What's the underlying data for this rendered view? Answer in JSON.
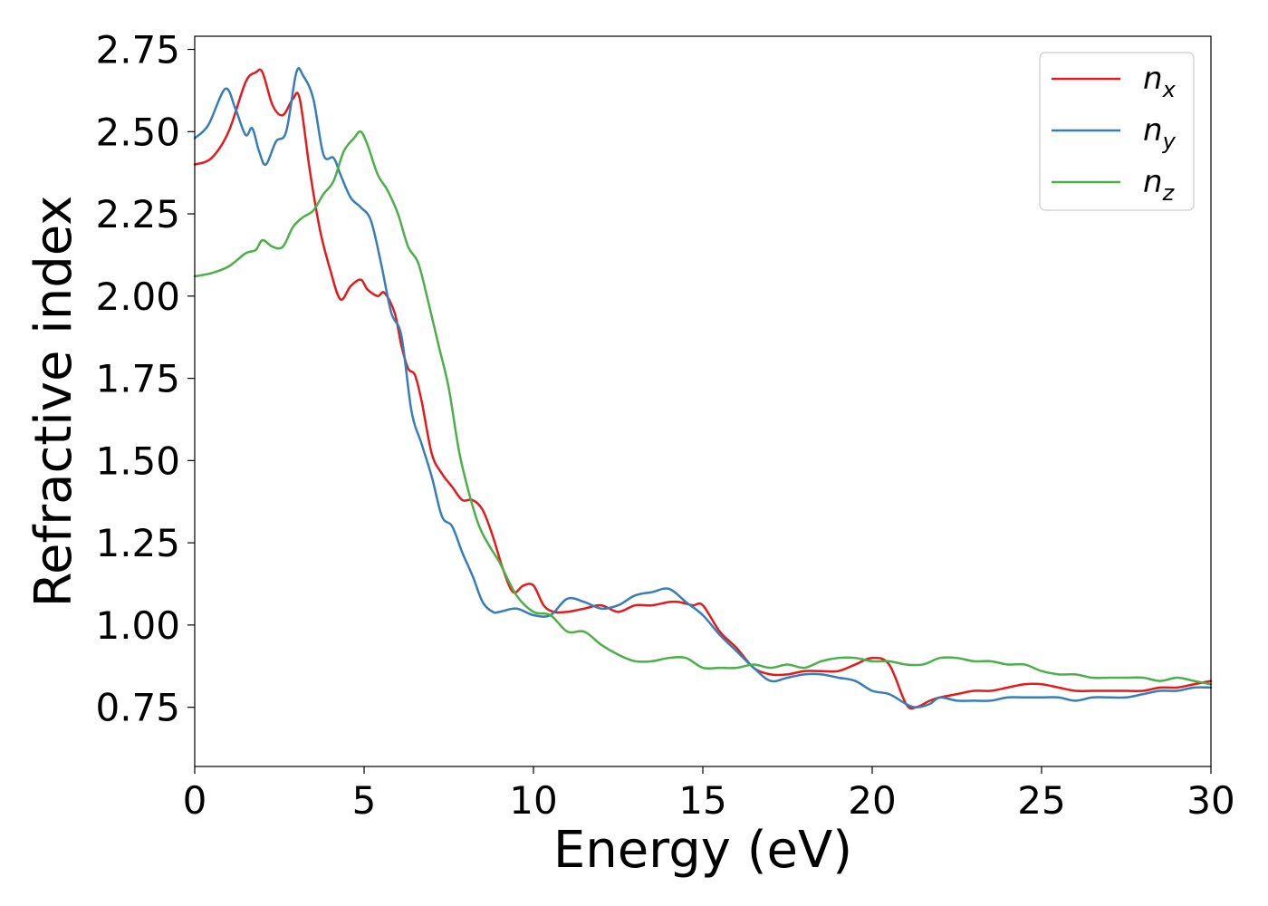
{
  "chart_data": {
    "type": "line",
    "xlabel": "Energy (eV)",
    "ylabel": "Refractive index",
    "xlim": [
      0,
      30
    ],
    "ylim": [
      0.57,
      2.79
    ],
    "xticks": [
      0,
      5,
      10,
      15,
      20,
      25,
      30
    ],
    "xtick_labels": [
      "0",
      "5",
      "10",
      "15",
      "20",
      "25",
      "30"
    ],
    "yticks": [
      0.75,
      1.0,
      1.25,
      1.5,
      1.75,
      2.0,
      2.25,
      2.5,
      2.75
    ],
    "ytick_labels": [
      "0.75",
      "1.00",
      "1.25",
      "1.50",
      "1.75",
      "2.00",
      "2.25",
      "2.50",
      "2.75"
    ],
    "grid": false,
    "legend_position": "top-right",
    "series": [
      {
        "name": "n_x",
        "label_base": "n",
        "label_sub": "x",
        "color": "#e41a1c",
        "x": [
          0,
          0.5,
          1.0,
          1.5,
          1.8,
          2.0,
          2.3,
          2.6,
          2.9,
          3.1,
          3.4,
          3.7,
          4.0,
          4.3,
          4.6,
          4.9,
          5.1,
          5.4,
          5.6,
          5.9,
          6.1,
          6.3,
          6.5,
          6.7,
          7.0,
          7.3,
          7.6,
          7.9,
          8.2,
          8.5,
          8.8,
          9.1,
          9.4,
          9.7,
          10.0,
          10.3,
          10.6,
          11.0,
          11.5,
          12.0,
          12.5,
          13.0,
          13.5,
          14.0,
          14.3,
          14.7,
          15.0,
          15.5,
          16.0,
          16.5,
          17.0,
          17.5,
          18.0,
          18.5,
          19.0,
          19.5,
          20.0,
          20.5,
          21.0,
          21.3,
          21.7,
          22.0,
          22.5,
          23.0,
          23.5,
          24.0,
          24.5,
          25.0,
          25.5,
          26.0,
          26.5,
          27.0,
          27.5,
          28.0,
          28.5,
          29.0,
          29.5,
          30.0
        ],
        "y": [
          2.4,
          2.42,
          2.5,
          2.65,
          2.68,
          2.68,
          2.58,
          2.55,
          2.6,
          2.6,
          2.38,
          2.2,
          2.08,
          1.99,
          2.03,
          2.05,
          2.02,
          2.0,
          2.01,
          1.95,
          1.85,
          1.78,
          1.76,
          1.68,
          1.52,
          1.46,
          1.42,
          1.38,
          1.38,
          1.35,
          1.27,
          1.17,
          1.1,
          1.12,
          1.12,
          1.06,
          1.04,
          1.04,
          1.05,
          1.06,
          1.04,
          1.06,
          1.06,
          1.07,
          1.07,
          1.06,
          1.06,
          0.98,
          0.93,
          0.87,
          0.85,
          0.85,
          0.86,
          0.86,
          0.86,
          0.88,
          0.9,
          0.88,
          0.76,
          0.75,
          0.77,
          0.78,
          0.79,
          0.8,
          0.8,
          0.81,
          0.82,
          0.82,
          0.81,
          0.8,
          0.8,
          0.8,
          0.8,
          0.8,
          0.81,
          0.81,
          0.82,
          0.83
        ]
      },
      {
        "name": "n_y",
        "label_base": "n",
        "label_sub": "y",
        "color": "#377eb8",
        "x": [
          0,
          0.4,
          0.9,
          1.2,
          1.5,
          1.7,
          1.9,
          2.1,
          2.4,
          2.7,
          3.0,
          3.2,
          3.5,
          3.8,
          4.1,
          4.3,
          4.6,
          4.9,
          5.2,
          5.5,
          5.8,
          6.1,
          6.4,
          6.7,
          7.0,
          7.3,
          7.6,
          7.9,
          8.2,
          8.5,
          8.8,
          9.0,
          9.5,
          10.0,
          10.5,
          11.0,
          11.5,
          12.0,
          12.5,
          13.0,
          13.5,
          14.0,
          14.5,
          15.0,
          15.5,
          16.0,
          16.5,
          17.0,
          17.5,
          18.0,
          18.5,
          19.0,
          19.5,
          20.0,
          20.5,
          21.0,
          21.3,
          21.7,
          22.0,
          22.5,
          23.0,
          23.5,
          24.0,
          24.5,
          25.0,
          25.5,
          26.0,
          26.5,
          27.0,
          27.5,
          28.0,
          28.5,
          29.0,
          29.5,
          30.0
        ],
        "y": [
          2.48,
          2.52,
          2.63,
          2.57,
          2.49,
          2.51,
          2.44,
          2.4,
          2.47,
          2.5,
          2.68,
          2.67,
          2.6,
          2.43,
          2.42,
          2.37,
          2.3,
          2.27,
          2.23,
          2.1,
          1.95,
          1.88,
          1.65,
          1.55,
          1.45,
          1.33,
          1.3,
          1.22,
          1.15,
          1.07,
          1.04,
          1.04,
          1.05,
          1.03,
          1.03,
          1.08,
          1.07,
          1.05,
          1.06,
          1.09,
          1.1,
          1.11,
          1.07,
          1.03,
          0.97,
          0.92,
          0.87,
          0.83,
          0.84,
          0.85,
          0.85,
          0.84,
          0.83,
          0.8,
          0.79,
          0.76,
          0.75,
          0.76,
          0.78,
          0.77,
          0.77,
          0.77,
          0.78,
          0.78,
          0.78,
          0.78,
          0.77,
          0.78,
          0.78,
          0.78,
          0.79,
          0.8,
          0.8,
          0.81,
          0.81
        ]
      },
      {
        "name": "n_z",
        "label_base": "n",
        "label_sub": "z",
        "color": "#4daf4a",
        "x": [
          0,
          0.5,
          1.0,
          1.5,
          1.8,
          2.0,
          2.3,
          2.6,
          2.9,
          3.2,
          3.5,
          3.8,
          4.1,
          4.4,
          4.7,
          4.9,
          5.1,
          5.4,
          5.7,
          6.0,
          6.3,
          6.6,
          6.9,
          7.2,
          7.5,
          7.8,
          8.1,
          8.4,
          8.7,
          9.0,
          9.5,
          10.0,
          10.5,
          11.0,
          11.5,
          12.0,
          12.5,
          13.0,
          13.5,
          14.0,
          14.5,
          15.0,
          15.5,
          16.0,
          16.5,
          17.0,
          17.5,
          18.0,
          18.5,
          19.0,
          19.5,
          20.0,
          20.5,
          21.0,
          21.5,
          22.0,
          22.5,
          23.0,
          23.5,
          24.0,
          24.5,
          25.0,
          25.5,
          26.0,
          26.5,
          27.0,
          27.5,
          28.0,
          28.5,
          29.0,
          29.5,
          30.0
        ],
        "y": [
          2.06,
          2.07,
          2.09,
          2.13,
          2.14,
          2.17,
          2.15,
          2.15,
          2.21,
          2.24,
          2.26,
          2.31,
          2.35,
          2.44,
          2.48,
          2.5,
          2.46,
          2.37,
          2.32,
          2.25,
          2.15,
          2.1,
          1.98,
          1.85,
          1.72,
          1.53,
          1.4,
          1.3,
          1.24,
          1.19,
          1.09,
          1.04,
          1.03,
          0.98,
          0.98,
          0.94,
          0.91,
          0.89,
          0.89,
          0.9,
          0.9,
          0.87,
          0.87,
          0.87,
          0.88,
          0.87,
          0.88,
          0.87,
          0.89,
          0.9,
          0.9,
          0.89,
          0.89,
          0.88,
          0.88,
          0.9,
          0.9,
          0.89,
          0.89,
          0.88,
          0.88,
          0.86,
          0.85,
          0.85,
          0.84,
          0.84,
          0.84,
          0.84,
          0.83,
          0.84,
          0.83,
          0.82
        ]
      }
    ]
  }
}
